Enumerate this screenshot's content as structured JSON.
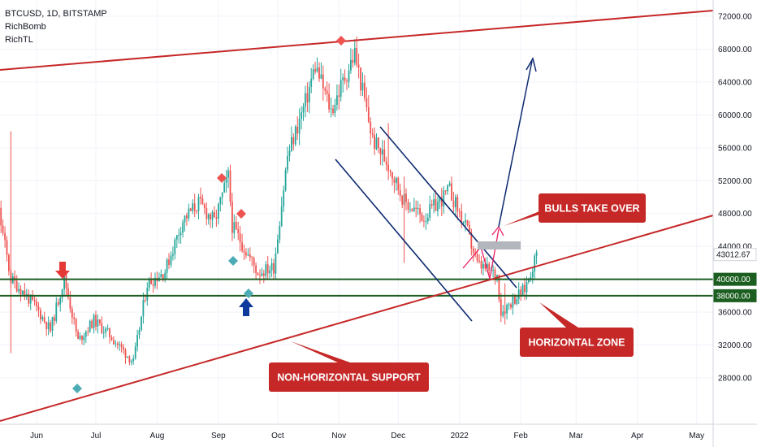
{
  "legend": {
    "symbol_line": "BTCUSD, 1D, BITSTAMP",
    "indicators": [
      "RichBomb",
      "RichTL"
    ]
  },
  "chart_data": {
    "type": "candlestick",
    "symbol": "BTCUSD",
    "timeframe": "1D",
    "exchange": "BITSTAMP",
    "x_tick_labels": [
      "Jun",
      "Jul",
      "Aug",
      "Sep",
      "Oct",
      "Nov",
      "Dec",
      "2022",
      "Feb",
      "Mar",
      "Apr",
      "May"
    ],
    "y_tick_labels": [
      "72000.00",
      "68000.00",
      "64000.00",
      "60000.00",
      "56000.00",
      "52000.00",
      "48000.00",
      "44000.00",
      "36000.00",
      "32000.00",
      "28000.00"
    ],
    "ylim": [
      25000,
      73500
    ],
    "last_price": "43012.67",
    "levels": [
      {
        "label": "40000.00",
        "value": 40000,
        "color": "#1b5e20"
      },
      {
        "label": "38000.00",
        "value": 38000,
        "color": "#1b5e20"
      }
    ],
    "closes": [
      {
        "date": "2021-05-01",
        "value": 57800
      },
      {
        "date": "2021-05-12",
        "value": 49500
      },
      {
        "date": "2021-05-19",
        "value": 40000
      },
      {
        "date": "2021-05-24",
        "value": 38800
      },
      {
        "date": "2021-06-01",
        "value": 36500
      },
      {
        "date": "2021-06-08",
        "value": 33800
      },
      {
        "date": "2021-06-15",
        "value": 40200
      },
      {
        "date": "2021-06-22",
        "value": 32500
      },
      {
        "date": "2021-06-30",
        "value": 35000
      },
      {
        "date": "2021-07-08",
        "value": 33200
      },
      {
        "date": "2021-07-20",
        "value": 29900
      },
      {
        "date": "2021-07-27",
        "value": 39500
      },
      {
        "date": "2021-08-05",
        "value": 41000
      },
      {
        "date": "2021-08-14",
        "value": 47200
      },
      {
        "date": "2021-08-22",
        "value": 49300
      },
      {
        "date": "2021-08-30",
        "value": 47000
      },
      {
        "date": "2021-09-06",
        "value": 52500
      },
      {
        "date": "2021-09-08",
        "value": 46500
      },
      {
        "date": "2021-09-21",
        "value": 40800
      },
      {
        "date": "2021-09-29",
        "value": 41500
      },
      {
        "date": "2021-10-06",
        "value": 55000
      },
      {
        "date": "2021-10-15",
        "value": 61500
      },
      {
        "date": "2021-10-20",
        "value": 66000
      },
      {
        "date": "2021-10-28",
        "value": 60500
      },
      {
        "date": "2021-11-09",
        "value": 67500
      },
      {
        "date": "2021-11-18",
        "value": 57000
      },
      {
        "date": "2021-11-26",
        "value": 54000
      },
      {
        "date": "2021-12-04",
        "value": 49500
      },
      {
        "date": "2021-12-14",
        "value": 47500
      },
      {
        "date": "2021-12-27",
        "value": 50800
      },
      {
        "date": "2022-01-05",
        "value": 45800
      },
      {
        "date": "2022-01-10",
        "value": 41800
      },
      {
        "date": "2022-01-20",
        "value": 40500
      },
      {
        "date": "2022-01-22",
        "value": 36000
      },
      {
        "date": "2022-01-28",
        "value": 37500
      },
      {
        "date": "2022-02-03",
        "value": 38800
      },
      {
        "date": "2022-02-09",
        "value": 43012.67
      }
    ],
    "price_scale_tags": [
      "43012.67",
      "40000.00",
      "38000.00"
    ]
  },
  "annotations": {
    "callouts": [
      {
        "text": "BULLS TAKE OVER",
        "color": "#c62828"
      },
      {
        "text": "HORIZONTAL ZONE",
        "color": "#c62828"
      },
      {
        "text": "NON-HORIZONTAL SUPPORT",
        "color": "#c62828"
      }
    ]
  },
  "colors": {
    "bull": "#26a69a",
    "bear": "#ef5350",
    "trendline": "#c62828",
    "channel": "#0d2a70",
    "projection": "#e91e63",
    "level": "#1b5e20"
  }
}
